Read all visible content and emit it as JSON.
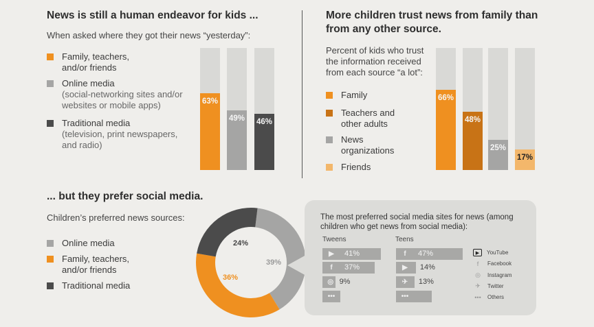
{
  "colors": {
    "orange": "#ef9020",
    "dark_orange": "#c87316",
    "gray": "#a5a5a4",
    "dark": "#4b4b4b",
    "light_orange": "#f3b76b",
    "track": "#d9d9d6"
  },
  "left": {
    "title": "News is still a human endeavor for kids ...",
    "subtitle": "When asked where they got their news “yesterday”:",
    "legend": [
      {
        "label": "Family, teachers,",
        "label2": "and/or friends",
        "note": ""
      },
      {
        "label": "Online media",
        "note": "(social-networking sites and/or",
        "note2": "websites or mobile apps)"
      },
      {
        "label": "Traditional media",
        "note": "(television, print newspapers,",
        "note2": "and radio)"
      }
    ]
  },
  "right": {
    "title": "More children trust news from family than",
    "title2": "from any other source.",
    "subtitle": [
      "Percent of kids who trust",
      "the information received",
      "from each source “a lot”:"
    ],
    "legend": [
      "Family",
      "Teachers and",
      "other adults",
      "News",
      "organizations",
      "Friends"
    ]
  },
  "bottom": {
    "title": "... but they prefer social media.",
    "subtitle": "Children’s preferred news sources:",
    "legend": [
      "Online media",
      "Family, teachers,",
      "and/or friends",
      "Traditional media"
    ]
  },
  "chart_data": [
    {
      "type": "bar",
      "title": "News is still a human endeavor for kids ...",
      "categories": [
        "Family, teachers, and/or friends",
        "Online media",
        "Traditional media"
      ],
      "values": [
        63,
        49,
        46
      ],
      "labels": [
        "63%",
        "49%",
        "46%"
      ],
      "ylim": [
        0,
        100
      ]
    },
    {
      "type": "bar",
      "title": "More children trust news from family than from any other source.",
      "categories": [
        "Family",
        "Teachers and other adults",
        "News organizations",
        "Friends"
      ],
      "values": [
        66,
        48,
        25,
        17
      ],
      "labels": [
        "66%",
        "48%",
        "25%",
        "17%"
      ],
      "ylim": [
        0,
        100
      ]
    },
    {
      "type": "pie",
      "title": "Children’s preferred news sources",
      "categories": [
        "Online media",
        "Family, teachers, and/or friends",
        "Traditional media"
      ],
      "values": [
        39,
        36,
        24
      ],
      "labels": [
        "39%",
        "36%",
        "24%"
      ]
    },
    {
      "type": "bar",
      "title": "The most preferred social media sites for news (among children who get news from social media):",
      "title2": "children who get news from social media):",
      "title1": "The most preferred social media sites for news (among",
      "groups": [
        {
          "name": "Tweens",
          "items": [
            {
              "site": "YouTube",
              "value": 41,
              "label": "41%"
            },
            {
              "site": "Facebook",
              "value": 37,
              "label": "37%"
            },
            {
              "site": "Instagram",
              "value": 9,
              "label": "9%"
            },
            {
              "site": "Others",
              "value": null,
              "label": ""
            }
          ]
        },
        {
          "name": "Teens",
          "items": [
            {
              "site": "Facebook",
              "value": 47,
              "label": "47%"
            },
            {
              "site": "YouTube",
              "value": 14,
              "label": "14%"
            },
            {
              "site": "Twitter",
              "value": 13,
              "label": "13%"
            },
            {
              "site": "Others",
              "value": null,
              "label": ""
            }
          ]
        }
      ],
      "legend": [
        "YouTube",
        "Facebook",
        "Instagram",
        "Twitter",
        "Others"
      ]
    }
  ]
}
